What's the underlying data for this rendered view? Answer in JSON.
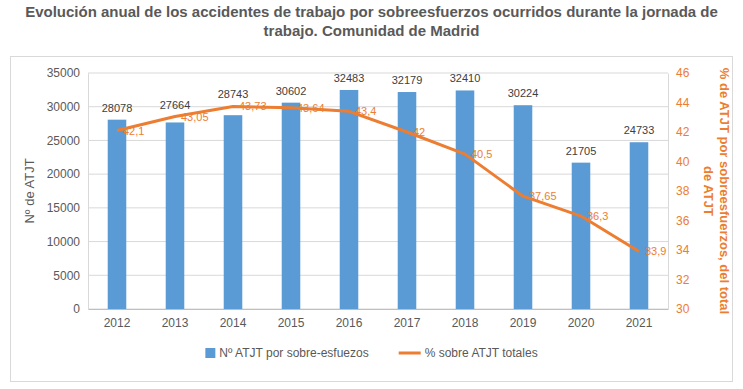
{
  "chart_data": {
    "type": "bar",
    "title": "Evolución anual de los accidentes de trabajo por sobreesfuerzos ocurridos durante la jornada de trabajo. Comunidad de Madrid",
    "categories": [
      "2012",
      "2013",
      "2014",
      "2015",
      "2016",
      "2017",
      "2018",
      "2019",
      "2020",
      "2021"
    ],
    "ylabel": "Nº de ATJT",
    "y2label": "% de ATJT por sobreesfuerzos, del total de ATJT",
    "ylim": [
      0,
      35000
    ],
    "yticks": [
      0,
      5000,
      10000,
      15000,
      20000,
      25000,
      30000,
      35000
    ],
    "y2lim": [
      30,
      46
    ],
    "y2ticks": [
      30,
      32,
      34,
      36,
      38,
      40,
      42,
      44,
      46
    ],
    "grid": true,
    "legend": "bottom",
    "series": [
      {
        "name": "Nº ATJT por sobre-esfuezos",
        "type": "bar",
        "color": "#5B9BD5",
        "values": [
          28078,
          27664,
          28743,
          30602,
          32483,
          32179,
          32410,
          30224,
          21705,
          24733
        ],
        "data_labels": true
      },
      {
        "name": "% sobre ATJT totales",
        "type": "line",
        "axis": "y2",
        "color": "#ED7D31",
        "values": [
          42.1,
          43.05,
          43.73,
          43.64,
          43.4,
          42,
          40.5,
          37.65,
          36.3,
          33.9
        ],
        "value_labels": [
          "42,1",
          "43,05",
          "43,73",
          "43,64",
          "43,4",
          "42",
          "40,5",
          "37,65",
          "36,3",
          "33,9"
        ],
        "data_labels": true
      }
    ]
  }
}
